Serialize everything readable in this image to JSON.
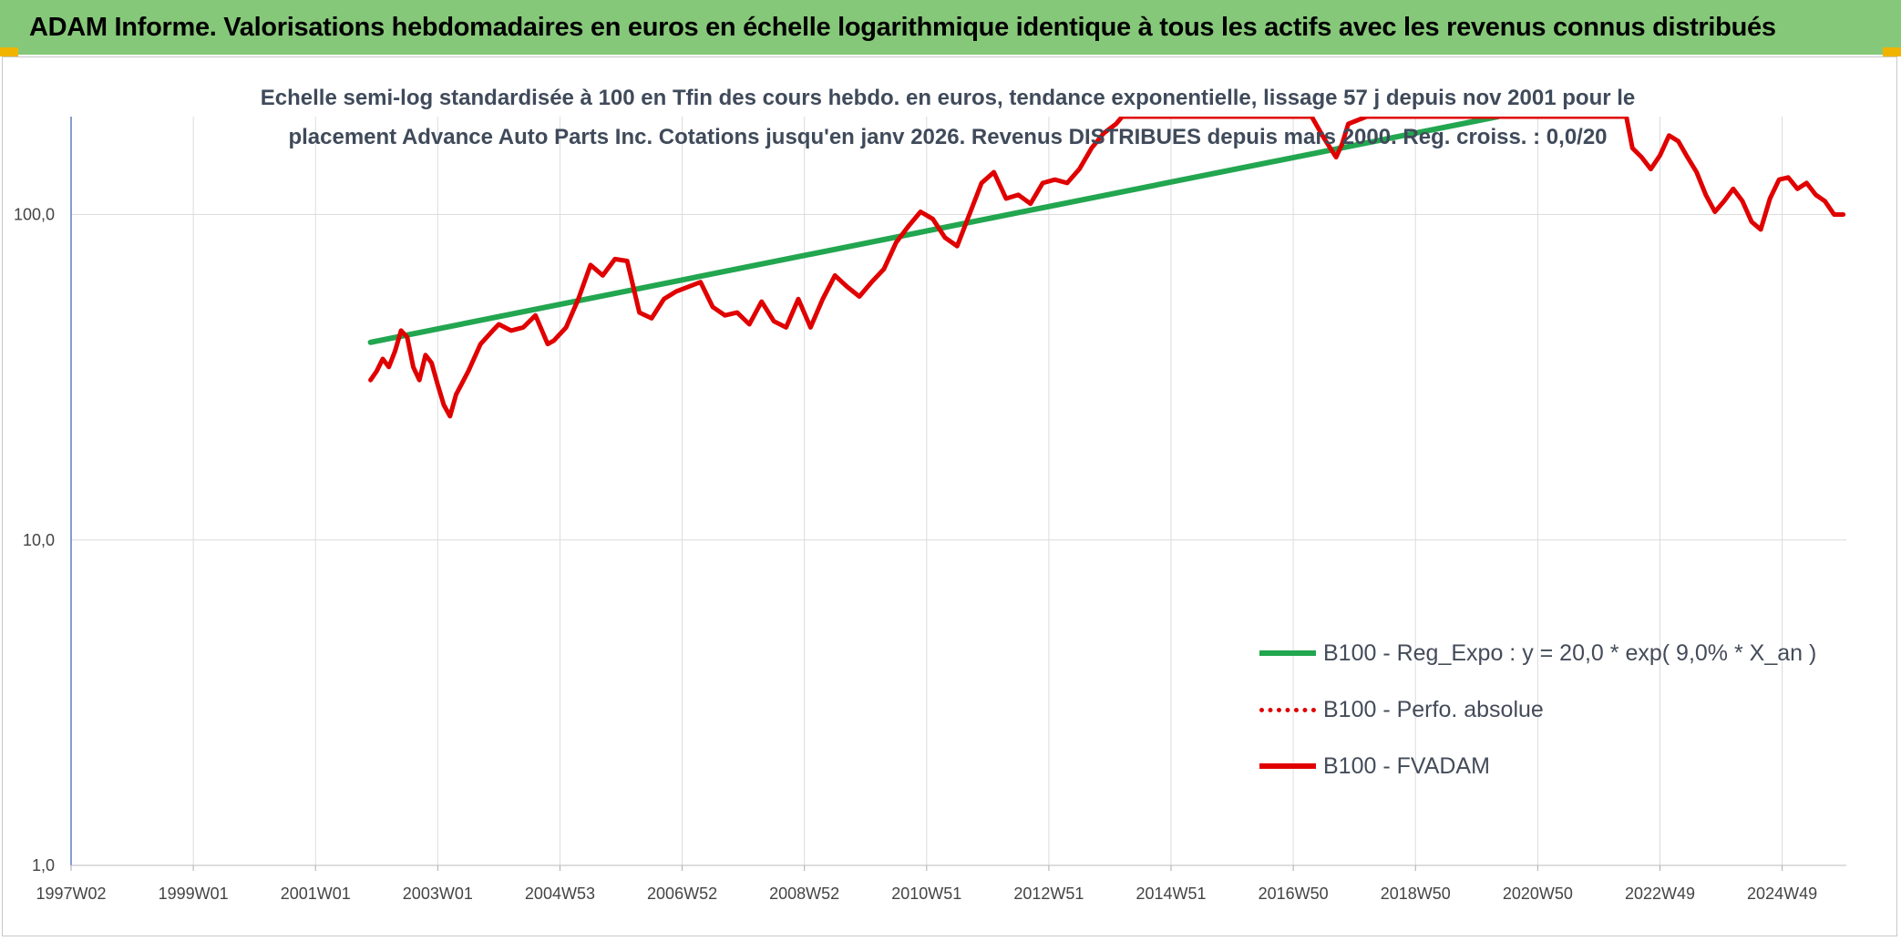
{
  "header": {
    "title": "ADAM Informe. Valorisations hebdomadaires en euros en échelle logarithmique identique à tous les actifs avec les revenus connus distribués"
  },
  "chart_data": {
    "type": "line",
    "title": "Echelle semi-log standardisée à 100 en Tfin des cours hebdo. en euros, tendance exponentielle, lissage 57 j depuis nov 2001 pour le placement Advance Auto Parts Inc. Cotations jusqu'en janv 2026. Revenus DISTRIBUES depuis mars 2000. Reg. croiss. : 0,0/20",
    "y_scale": "log",
    "ylim": [
      1,
      200
    ],
    "y_ticks": [
      "1,0",
      "10,0",
      "100,0"
    ],
    "y_tick_values": [
      1,
      10,
      100
    ],
    "x_tick_labels": [
      "1997W02",
      "1999W01",
      "2001W01",
      "2003W01",
      "2004W53",
      "2006W52",
      "2008W52",
      "2010W51",
      "2012W51",
      "2014W51",
      "2016W50",
      "2018W50",
      "2020W50",
      "2022W49",
      "2024W49"
    ],
    "x_tick_years": [
      1997.0,
      1999.0,
      2001.0,
      2003.0,
      2005.0,
      2007.0,
      2009.0,
      2011.0,
      2013.0,
      2015.0,
      2017.0,
      2019.0,
      2021.0,
      2023.0,
      2025.0
    ],
    "xlim": [
      1997.0,
      2026.05
    ],
    "grid": true,
    "legend_position": "bottom-right",
    "series": [
      {
        "name": "B100 - Reg_Expo : y = 20,0 * exp( 9,0% *  X_an )",
        "color": "#22a650",
        "style": "solid",
        "x": [
          2001.9,
          2020.35
        ],
        "y": [
          40.5,
          200
        ]
      },
      {
        "name": "B100 - Perfo. absolue",
        "color": "#e00000",
        "style": "dotted",
        "x": [],
        "y": []
      },
      {
        "name": "B100 - FVADAM",
        "color": "#e00000",
        "style": "solid",
        "x": [
          2001.9,
          2002.0,
          2002.1,
          2002.2,
          2002.3,
          2002.4,
          2002.5,
          2002.6,
          2002.7,
          2002.8,
          2002.9,
          2003.0,
          2003.1,
          2003.2,
          2003.3,
          2003.5,
          2003.7,
          2003.9,
          2004.0,
          2004.2,
          2004.4,
          2004.6,
          2004.8,
          2004.9,
          2005.1,
          2005.3,
          2005.5,
          2005.7,
          2005.9,
          2006.1,
          2006.3,
          2006.5,
          2006.7,
          2006.9,
          2007.1,
          2007.3,
          2007.5,
          2007.7,
          2007.9,
          2008.1,
          2008.3,
          2008.5,
          2008.7,
          2008.9,
          2009.1,
          2009.3,
          2009.5,
          2009.7,
          2009.9,
          2010.1,
          2010.3,
          2010.5,
          2010.7,
          2010.9,
          2011.1,
          2011.3,
          2011.5,
          2011.7,
          2011.9,
          2012.1,
          2012.3,
          2012.5,
          2012.7,
          2012.9,
          2013.1,
          2013.3,
          2013.5,
          2013.7,
          2013.9,
          2014.1,
          2014.2,
          2017.3,
          2017.5,
          2017.7,
          2017.8,
          2017.9,
          2018.2,
          2018.35,
          2018.5,
          2018.6,
          2020.35,
          2020.45,
          2022.45,
          2022.55,
          2022.7,
          2022.85,
          2023.0,
          2023.15,
          2023.3,
          2023.45,
          2023.6,
          2023.75,
          2023.9,
          2024.05,
          2024.2,
          2024.35,
          2024.5,
          2024.65,
          2024.8,
          2024.95,
          2025.1,
          2025.25,
          2025.4,
          2025.55,
          2025.7,
          2025.85,
          2026.0
        ],
        "y": [
          31,
          33,
          36,
          34,
          38,
          44,
          42,
          34,
          31,
          37,
          35,
          30,
          26,
          24,
          28,
          33,
          40,
          44,
          46,
          44,
          45,
          49,
          40,
          41,
          45,
          55,
          70,
          65,
          73,
          72,
          50,
          48,
          55,
          58,
          60,
          62,
          52,
          49,
          50,
          46,
          54,
          47,
          45,
          55,
          45,
          55,
          65,
          60,
          56,
          62,
          68,
          82,
          92,
          102,
          97,
          85,
          80,
          100,
          125,
          135,
          112,
          115,
          108,
          125,
          128,
          125,
          138,
          160,
          178,
          190,
          200,
          200,
          172,
          150,
          165,
          190,
          200,
          200,
          200,
          200,
          200,
          200,
          200,
          160,
          150,
          138,
          152,
          175,
          168,
          150,
          135,
          115,
          102,
          110,
          120,
          110,
          95,
          90,
          112,
          128,
          130,
          120,
          125,
          115,
          110,
          100,
          100
        ]
      }
    ]
  }
}
